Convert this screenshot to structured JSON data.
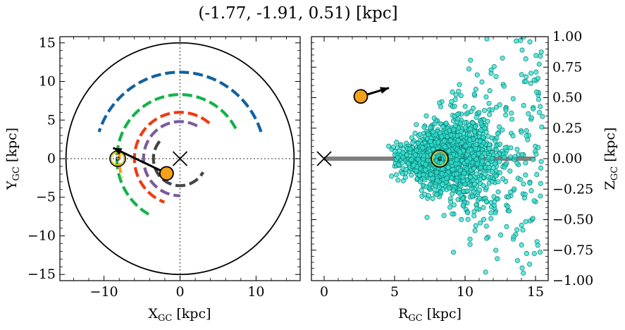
{
  "title": "(-1.77, -1.91, 0.51) [kpc]",
  "colors": {
    "outer_circle": "#000000",
    "arm_blue": "#1261a0",
    "arm_green": "#12b34a",
    "arm_orange": "#f6a11a",
    "arm_red": "#ef3b0f",
    "arm_purple": "#7b5b9b",
    "arm_gray": "#444444",
    "object": "#f6a11a",
    "sun_ring": "#e8c000",
    "points_fill": "#30e0d0",
    "points_edge": "#0e7e74",
    "disk_line": "#7f7f7f"
  },
  "chart_data": [
    {
      "type": "scatter",
      "panel": "left",
      "xlabel_main": "X",
      "xlabel_sub": "GC",
      "xlabel_unit": " [kpc]",
      "ylabel_main": "Y",
      "ylabel_sub": "GC",
      "ylabel_unit": " [kpc]",
      "xlim": [
        -15.8,
        15.8
      ],
      "ylim": [
        -15.8,
        15.8
      ],
      "xticks": [
        -10,
        0,
        10
      ],
      "xtick_labels": [
        "−10",
        "0",
        "10"
      ],
      "yticks": [
        -15,
        -10,
        -5,
        0,
        5,
        10,
        15
      ],
      "ytick_labels": [
        "−15",
        "−10",
        "−5",
        "0",
        "5",
        "10",
        "15"
      ],
      "reference_lines": {
        "x": 0,
        "y": 0
      },
      "boundary_circle_radius": 15,
      "galactic_center": [
        0,
        0
      ],
      "sun_position": [
        -8.2,
        0
      ],
      "object": [
        -1.77,
        -1.91
      ],
      "velocity_arrow_end": [
        -8.8,
        1.4
      ],
      "arms": [
        {
          "color_key": "arm_blue",
          "radius": 11.2,
          "theta_start_deg": 18,
          "theta_end_deg": 162
        },
        {
          "color_key": "arm_green",
          "radius": 8.3,
          "theta_start_deg": 28,
          "theta_end_deg": 242
        },
        {
          "color_key": "arm_orange",
          "radius": 8.0,
          "theta_start_deg": 171,
          "theta_end_deg": 198
        },
        {
          "color_key": "arm_red",
          "radius": 6.0,
          "theta_start_deg": 50,
          "theta_end_deg": 250
        },
        {
          "color_key": "arm_purple",
          "radius": 4.8,
          "theta_start_deg": 62,
          "theta_end_deg": 270
        },
        {
          "color_key": "arm_gray",
          "radius": 3.5,
          "theta_start_deg": 140,
          "theta_end_deg": 330
        }
      ]
    },
    {
      "type": "scatter",
      "panel": "right",
      "xlabel_main": "R",
      "xlabel_sub": "GC",
      "xlabel_unit": " [kpc]",
      "ylabel_main": "Z",
      "ylabel_sub": "GC",
      "ylabel_unit": " [kpc]",
      "xlim": [
        -0.9,
        15.9
      ],
      "ylim": [
        -1.0,
        1.0
      ],
      "xticks": [
        0,
        5,
        10,
        15
      ],
      "xtick_labels": [
        "0",
        "5",
        "10",
        "15"
      ],
      "yticks": [
        -1.0,
        -0.75,
        -0.5,
        -0.25,
        0.0,
        0.25,
        0.5,
        0.75,
        1.0
      ],
      "ytick_labels": [
        "−1.00",
        "−0.75",
        "−0.50",
        "−0.25",
        "0.00",
        "0.25",
        "0.50",
        "0.75",
        "1.00"
      ],
      "ylabel_side": "right",
      "disk_line": {
        "x": [
          0,
          15
        ],
        "z": 0
      },
      "galactic_center": [
        0,
        0
      ],
      "sun_position": [
        8.2,
        0.0
      ],
      "object": [
        2.6,
        0.51
      ],
      "velocity_arrow_end": [
        4.6,
        0.58
      ],
      "star_cloud": {
        "n_core": 1200,
        "n_halo": 420,
        "r_min": 4.5,
        "r_max": 15.5,
        "r_center": 8.7,
        "z_sigma": 0.12
      }
    }
  ]
}
